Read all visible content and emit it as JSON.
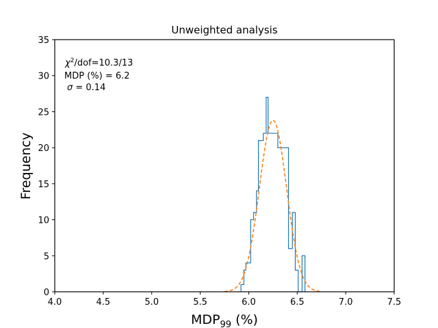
{
  "chart_data": {
    "type": "histogram",
    "title": "Unweighted analysis",
    "xlabel": {
      "main": "MDP",
      "subscript": "99",
      "suffix": " (%)"
    },
    "ylabel": "Frequency",
    "xlim": [
      4.0,
      7.5
    ],
    "ylim": [
      0,
      35
    ],
    "xticks": [
      4.0,
      4.5,
      5.0,
      5.5,
      6.0,
      6.5,
      7.0,
      7.5
    ],
    "xtick_labels": [
      "4.0",
      "4.5",
      "5.0",
      "5.5",
      "6.0",
      "6.5",
      "7.0",
      "7.5"
    ],
    "yticks": [
      0,
      5,
      10,
      15,
      20,
      25,
      30,
      35
    ],
    "ytick_labels": [
      "0",
      "5",
      "10",
      "15",
      "20",
      "25",
      "30",
      "35"
    ],
    "grid": false,
    "histogram": {
      "color": "#1f77b4",
      "bin_edges": [
        5.92,
        5.95,
        5.97,
        6.02,
        6.05,
        6.08,
        6.1,
        6.15,
        6.18,
        6.2,
        6.24,
        6.3,
        6.41,
        6.45,
        6.48,
        6.51,
        6.55,
        6.58
      ],
      "counts": [
        1,
        3,
        4,
        10,
        11,
        14,
        21,
        22,
        27,
        22,
        22,
        20,
        6,
        11,
        3,
        0,
        5
      ]
    },
    "fit": {
      "type": "gaussian",
      "style": "dashed",
      "color": "#ff7f0e",
      "mean": 6.25,
      "sigma": 0.14,
      "amplitude": 23.8,
      "x_range": [
        5.75,
        6.75
      ]
    },
    "annotations": [
      {
        "symbol": "χ",
        "superscript": "2",
        "text": "/dof=10.3/13"
      },
      {
        "text": "MDP (%) = 6.2"
      },
      {
        "symbol": "σ",
        "text": " =  0.14"
      }
    ]
  }
}
